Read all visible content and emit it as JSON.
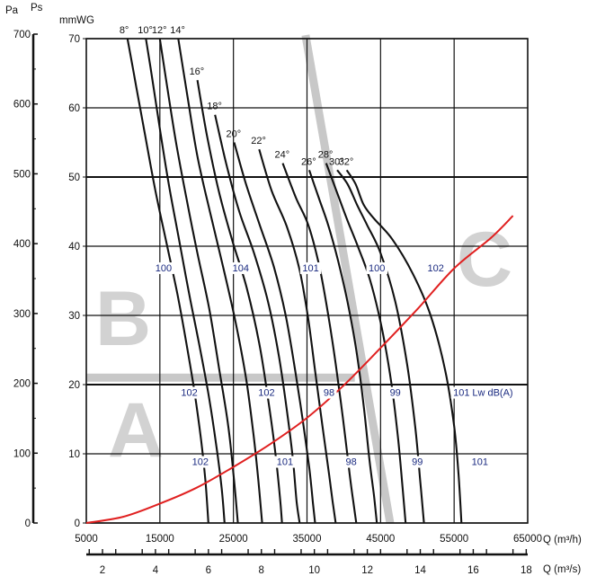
{
  "chart_data": {
    "type": "line",
    "y_left_outer_label": "Pa",
    "y_left_label": "Ps",
    "y_label": "mmWG",
    "x_label": "Q (m³/h)",
    "x2_label": "Q (m³/s)",
    "noise_unit": "Lw dB(A)",
    "colors": {
      "curve": "#111111",
      "system_curve": "#e02020",
      "zone_band": "#c8c8c8",
      "zone_letter": "#d2d2d2",
      "noise_label": "#1a2a80"
    },
    "xlim": [
      5000,
      65000
    ],
    "ylim": [
      0,
      70
    ],
    "x_ticks": [
      "5000",
      "15000",
      "25000",
      "35000",
      "45000",
      "55000",
      "65000"
    ],
    "y_ticks": [
      "0",
      "10",
      "20",
      "30",
      "40",
      "50",
      "60",
      "70"
    ],
    "pa_ticks": [
      "0",
      "100",
      "200",
      "300",
      "400",
      "500",
      "600",
      "700"
    ],
    "x2_ticks": [
      "2",
      "4",
      "6",
      "8",
      "10",
      "12",
      "14",
      "16",
      "18"
    ],
    "zones": [
      "A",
      "B",
      "C"
    ],
    "series": [
      {
        "name": "8°",
        "x": [
          10600,
          11800,
          13000,
          14400,
          16000,
          17400,
          18600,
          19700,
          20600,
          21200,
          21600
        ],
        "y": [
          70,
          63,
          56,
          48,
          40,
          33,
          26,
          19,
          12,
          6,
          0
        ]
      },
      {
        "name": "10°",
        "x": [
          13100,
          14000,
          15000,
          16200,
          17600,
          19000,
          20500,
          21700,
          22700,
          23400,
          23800
        ],
        "y": [
          70,
          64,
          57,
          49,
          41,
          33,
          25,
          18,
          11,
          5,
          0
        ]
      },
      {
        "name": "12°",
        "x": [
          15000,
          16000,
          17200,
          18600,
          20100,
          21700,
          23100,
          24300,
          25100,
          25600
        ],
        "y": [
          70,
          63,
          55,
          47,
          39,
          31,
          22,
          14,
          6,
          0
        ]
      },
      {
        "name": "14°",
        "x": [
          17500,
          18700,
          20100,
          21800,
          23600,
          25300,
          26700,
          27700,
          28400,
          28900
        ],
        "y": [
          70,
          62,
          53,
          45,
          37,
          29,
          21,
          13,
          6,
          0
        ]
      },
      {
        "name": "16°",
        "x": [
          20100,
          21400,
          23000,
          24800,
          26800,
          28500,
          29700,
          30600,
          31300,
          31600
        ],
        "y": [
          64,
          56,
          48,
          41,
          34,
          26,
          18,
          11,
          4,
          0
        ]
      },
      {
        "name": "18°",
        "x": [
          22500,
          24000,
          25800,
          27800,
          29700,
          31200,
          32300,
          33100,
          33600,
          34000
        ],
        "y": [
          59,
          52,
          45,
          39,
          32,
          24,
          16,
          9,
          3,
          0
        ]
      },
      {
        "name": "20°",
        "x": [
          25100,
          26700,
          28600,
          30500,
          32100,
          33400,
          34400,
          35300,
          35800,
          36100
        ],
        "y": [
          55,
          49,
          43,
          37,
          30,
          22,
          15,
          8,
          3,
          0
        ]
      },
      {
        "name": "22°",
        "x": [
          28500,
          30200,
          32200,
          33900,
          35100,
          36100,
          37100,
          38000,
          38500,
          38900
        ],
        "y": [
          54,
          48,
          43,
          37,
          30,
          22,
          14,
          7,
          3,
          0
        ]
      },
      {
        "name": "24°",
        "x": [
          31700,
          33500,
          35200,
          36700,
          37900,
          38900,
          39900,
          40800,
          41300,
          41700
        ],
        "y": [
          52,
          47,
          43,
          37,
          30,
          23,
          15,
          7,
          3,
          0
        ]
      },
      {
        "name": "26°",
        "x": [
          35300,
          36600,
          37900,
          39200,
          40500,
          41700,
          42700,
          43500,
          44100,
          44500
        ],
        "y": [
          51,
          47,
          43,
          38,
          32,
          25,
          17,
          9,
          4,
          0
        ]
      },
      {
        "name": "28°",
        "x": [
          37600,
          39000,
          40400,
          41900,
          43600,
          45200,
          46500,
          47400,
          48000,
          48400
        ],
        "y": [
          52,
          48,
          44,
          40,
          35,
          28,
          20,
          12,
          5,
          0
        ]
      },
      {
        "name": "30°",
        "x": [
          39100,
          40500,
          41800,
          43200,
          45000,
          47000,
          48600,
          49700,
          50400,
          50900
        ],
        "y": [
          51,
          49,
          46,
          43,
          39,
          32,
          23,
          14,
          6,
          0
        ]
      },
      {
        "name": "32°",
        "x": [
          40400,
          41600,
          42700,
          44100,
          46600,
          49400,
          51800,
          53800,
          55000,
          55600,
          56000
        ],
        "y": [
          51,
          49,
          46,
          44,
          41,
          36,
          30,
          22,
          14,
          7,
          0
        ]
      }
    ],
    "system_curve": {
      "x": [
        5000,
        10000,
        15000,
        20000,
        25000,
        30000,
        35000,
        40000,
        45000,
        50000,
        55000,
        60000,
        63000
      ],
      "y": [
        0,
        0.9,
        2.8,
        5.1,
        8.1,
        11.4,
        15.2,
        19.9,
        25.3,
        30.9,
        36.8,
        41.2,
        44.4
      ]
    },
    "noise_labels": [
      {
        "text": "100",
        "x": 15500,
        "y": 36.5
      },
      {
        "text": "104",
        "x": 26000,
        "y": 36.5
      },
      {
        "text": "101",
        "x": 35500,
        "y": 36.5
      },
      {
        "text": "100",
        "x": 44500,
        "y": 36.5
      },
      {
        "text": "102",
        "x": 52500,
        "y": 36.5
      },
      {
        "text": "102",
        "x": 19000,
        "y": 18.5
      },
      {
        "text": "102",
        "x": 29500,
        "y": 18.5
      },
      {
        "text": "98",
        "x": 38000,
        "y": 18.5
      },
      {
        "text": "99",
        "x": 47000,
        "y": 18.5
      },
      {
        "text": "101",
        "x": 56000,
        "y": 18.5
      },
      {
        "text": "102",
        "x": 20500,
        "y": 8.5
      },
      {
        "text": "101",
        "x": 32000,
        "y": 8.5
      },
      {
        "text": "98",
        "x": 41000,
        "y": 8.5
      },
      {
        "text": "99",
        "x": 50000,
        "y": 8.5
      },
      {
        "text": "101",
        "x": 58500,
        "y": 8.5
      }
    ]
  }
}
